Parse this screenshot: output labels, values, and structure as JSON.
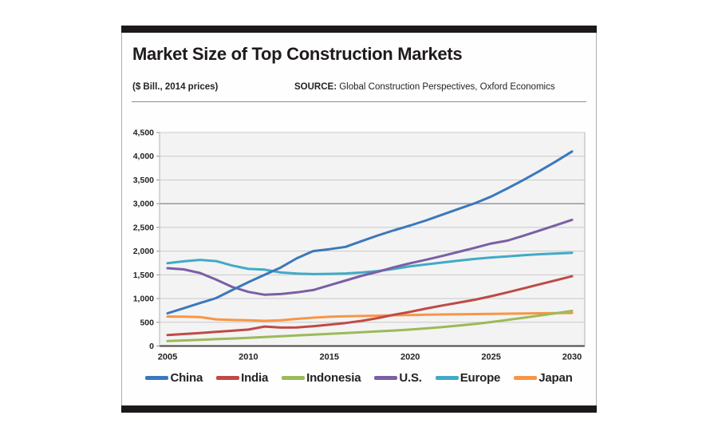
{
  "card": {
    "title": "Market Size of Top Construction Markets",
    "units_label": "($ Bill., 2014 prices)",
    "source_label": "SOURCE:",
    "source_text": " Global Construction Perspectives, Oxford Economics",
    "accent_bar_color": "#1d191b"
  },
  "chart_data": {
    "type": "line",
    "title": "Market Size of Top Construction Markets",
    "units": "$ Bill., 2014 prices",
    "source": "Global Construction Perspectives, Oxford Economics",
    "xlabel": "",
    "ylabel": "",
    "x": [
      2005,
      2006,
      2007,
      2008,
      2009,
      2010,
      2011,
      2012,
      2013,
      2014,
      2015,
      2016,
      2017,
      2018,
      2019,
      2020,
      2021,
      2022,
      2023,
      2024,
      2025,
      2026,
      2027,
      2028,
      2029,
      2030
    ],
    "x_tick_labels": [
      "2005",
      "2010",
      "2015",
      "2020",
      "2025",
      "2030"
    ],
    "y_ticks": [
      0,
      500,
      1000,
      1500,
      2000,
      2500,
      3000,
      3500,
      4000,
      4500
    ],
    "y_tick_labels": [
      "0",
      "500",
      "1,000",
      "1,500",
      "2,000",
      "2,500",
      "3,000",
      "3,500",
      "4,000",
      "4,500"
    ],
    "ylim": [
      0,
      4500
    ],
    "grid": "horizontal only, every 500; 3000 line emphasized",
    "plot_bg": "#f3f3f3",
    "gridline_color": "#c9c9c9",
    "emphasized_gridline": 3000,
    "legend_position": "bottom",
    "series": [
      {
        "name": "China",
        "color": "#3b78bb",
        "values": [
          690,
          795,
          905,
          1010,
          1180,
          1345,
          1500,
          1655,
          1850,
          2000,
          2040,
          2090,
          2210,
          2330,
          2440,
          2540,
          2650,
          2770,
          2890,
          3010,
          3150,
          3320,
          3500,
          3690,
          3890,
          4100
        ]
      },
      {
        "name": "India",
        "color": "#bf4a45",
        "values": [
          230,
          252,
          275,
          298,
          322,
          347,
          410,
          388,
          392,
          418,
          450,
          485,
          530,
          588,
          660,
          720,
          790,
          855,
          915,
          975,
          1050,
          1130,
          1215,
          1300,
          1385,
          1470
        ]
      },
      {
        "name": "Indonesia",
        "color": "#9bba59",
        "values": [
          105,
          118,
          131,
          144,
          158,
          173,
          189,
          205,
          222,
          240,
          257,
          274,
          291,
          309,
          327,
          347,
          372,
          400,
          430,
          465,
          505,
          550,
          595,
          642,
          690,
          740
        ]
      },
      {
        "name": "U.S.",
        "color": "#7b5fa4",
        "values": [
          1640,
          1615,
          1540,
          1400,
          1245,
          1140,
          1080,
          1095,
          1130,
          1180,
          1280,
          1380,
          1480,
          1565,
          1660,
          1745,
          1820,
          1900,
          1985,
          2070,
          2160,
          2220,
          2325,
          2435,
          2545,
          2660
        ]
      },
      {
        "name": "Europe",
        "color": "#41aac7",
        "values": [
          1745,
          1785,
          1815,
          1790,
          1695,
          1625,
          1610,
          1550,
          1525,
          1515,
          1520,
          1530,
          1550,
          1580,
          1625,
          1680,
          1720,
          1760,
          1800,
          1835,
          1865,
          1890,
          1915,
          1935,
          1950,
          1965
        ]
      },
      {
        "name": "Japan",
        "color": "#f79646",
        "values": [
          620,
          618,
          610,
          562,
          548,
          542,
          530,
          542,
          572,
          598,
          615,
          625,
          633,
          640,
          647,
          653,
          659,
          664,
          669,
          673,
          677,
          681,
          685,
          689,
          693,
          697
        ]
      }
    ]
  }
}
